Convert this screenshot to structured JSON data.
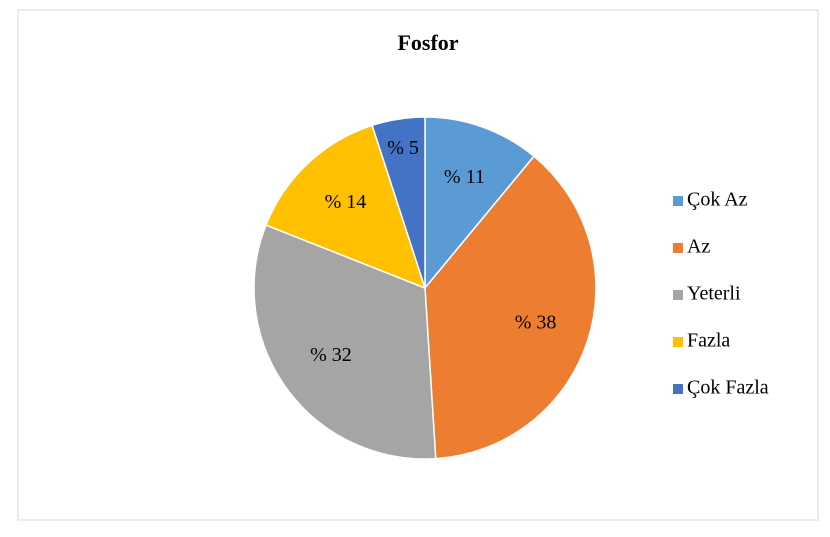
{
  "chart_data": {
    "type": "pie",
    "title": "Fosfor",
    "categories": [
      "Çok Az",
      "Az",
      "Yeterli",
      "Fazla",
      "Çok Fazla"
    ],
    "values": [
      11,
      38,
      32,
      14,
      5
    ],
    "value_labels": [
      "% 11",
      "% 38",
      "% 32",
      "% 14",
      "% 5"
    ],
    "colors": [
      "#5b9bd5",
      "#ed7d31",
      "#a5a5a5",
      "#ffc000",
      "#4472c4"
    ],
    "legend": "right"
  }
}
